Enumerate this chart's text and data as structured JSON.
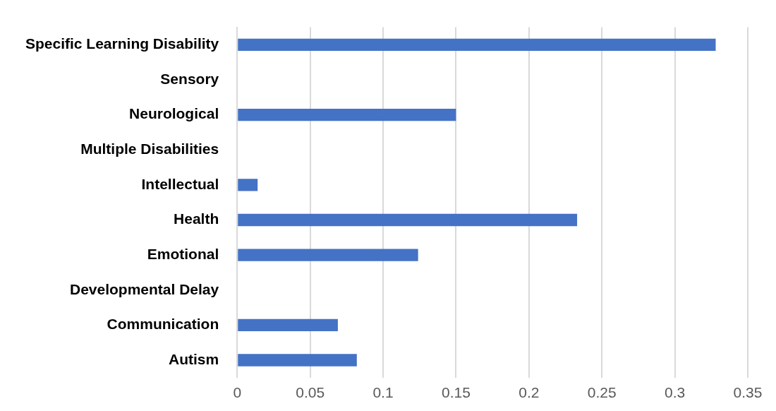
{
  "chart_data": {
    "type": "bar",
    "orientation": "horizontal",
    "categories": [
      "Specific Learning Disability",
      "Sensory",
      "Neurological",
      "Multiple Disabilities",
      "Intellectual",
      "Health",
      "Emotional",
      "Developmental Delay",
      "Communication",
      "Autism"
    ],
    "values": [
      0.328,
      0,
      0.15,
      0,
      0.014,
      0.233,
      0.124,
      0,
      0.069,
      0.082
    ],
    "color": "#4472c4",
    "xlim": [
      0,
      0.35
    ],
    "xticks": [
      0,
      0.05,
      0.1,
      0.15,
      0.2,
      0.25,
      0.3,
      0.35
    ],
    "grid": "x",
    "legend": false
  }
}
